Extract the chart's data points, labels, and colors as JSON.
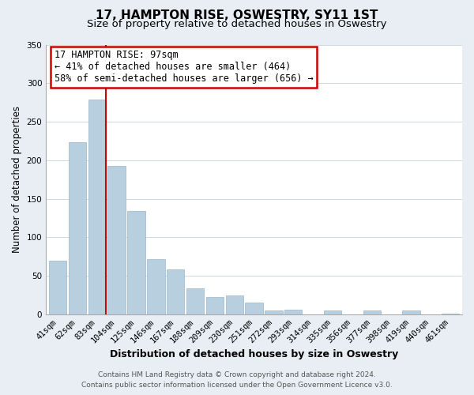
{
  "title": "17, HAMPTON RISE, OSWESTRY, SY11 1ST",
  "subtitle": "Size of property relative to detached houses in Oswestry",
  "xlabel": "Distribution of detached houses by size in Oswestry",
  "ylabel": "Number of detached properties",
  "categories": [
    "41sqm",
    "62sqm",
    "83sqm",
    "104sqm",
    "125sqm",
    "146sqm",
    "167sqm",
    "188sqm",
    "209sqm",
    "230sqm",
    "251sqm",
    "272sqm",
    "293sqm",
    "314sqm",
    "335sqm",
    "356sqm",
    "377sqm",
    "398sqm",
    "419sqm",
    "440sqm",
    "461sqm"
  ],
  "values": [
    70,
    223,
    279,
    193,
    134,
    72,
    58,
    34,
    23,
    25,
    15,
    5,
    6,
    0,
    5,
    0,
    5,
    0,
    5,
    0,
    1
  ],
  "bar_color": "#b8cfe0",
  "bar_edge_color": "#9ab5cc",
  "highlight_line_color": "#cc0000",
  "annotation_text": "17 HAMPTON RISE: 97sqm\n← 41% of detached houses are smaller (464)\n58% of semi-detached houses are larger (656) →",
  "annotation_box_facecolor": "#ffffff",
  "annotation_box_edgecolor": "#cc0000",
  "ylim": [
    0,
    350
  ],
  "yticks": [
    0,
    50,
    100,
    150,
    200,
    250,
    300,
    350
  ],
  "footer_line1": "Contains HM Land Registry data © Crown copyright and database right 2024.",
  "footer_line2": "Contains public sector information licensed under the Open Government Licence v3.0.",
  "fig_background_color": "#e8eef4",
  "plot_background_color": "#ffffff",
  "title_fontsize": 11,
  "subtitle_fontsize": 9.5,
  "xlabel_fontsize": 9,
  "ylabel_fontsize": 8.5,
  "annotation_fontsize": 8.5,
  "footer_fontsize": 6.5,
  "tick_fontsize": 7.5
}
